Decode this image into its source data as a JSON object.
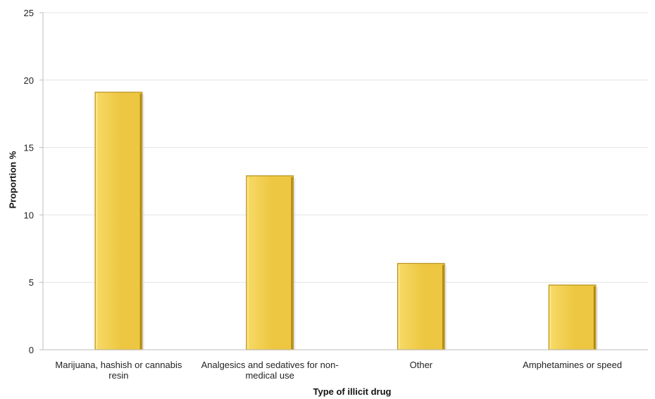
{
  "chart_data": {
    "type": "bar",
    "categories": [
      "Marijuana, hashish or cannabis resin",
      "Analgesics and sedatives for non-medical use",
      "Other",
      "Amphetamines or speed"
    ],
    "values": [
      19.1,
      12.9,
      6.4,
      4.8
    ],
    "xlabel": "Type of illicit drug",
    "ylabel": "Proportion  %",
    "ylim": [
      0,
      25
    ],
    "yticks": [
      "0",
      "5",
      "10",
      "15",
      "20",
      "25"
    ],
    "grid": true,
    "legend": "none",
    "colors": {
      "bar_fill": "#EDC741",
      "bar_dark": "#B89018",
      "bar_light": "#F7DA68",
      "grid": "#E3E3E3",
      "axis": "#BDBDBD",
      "text": "#222222"
    }
  }
}
